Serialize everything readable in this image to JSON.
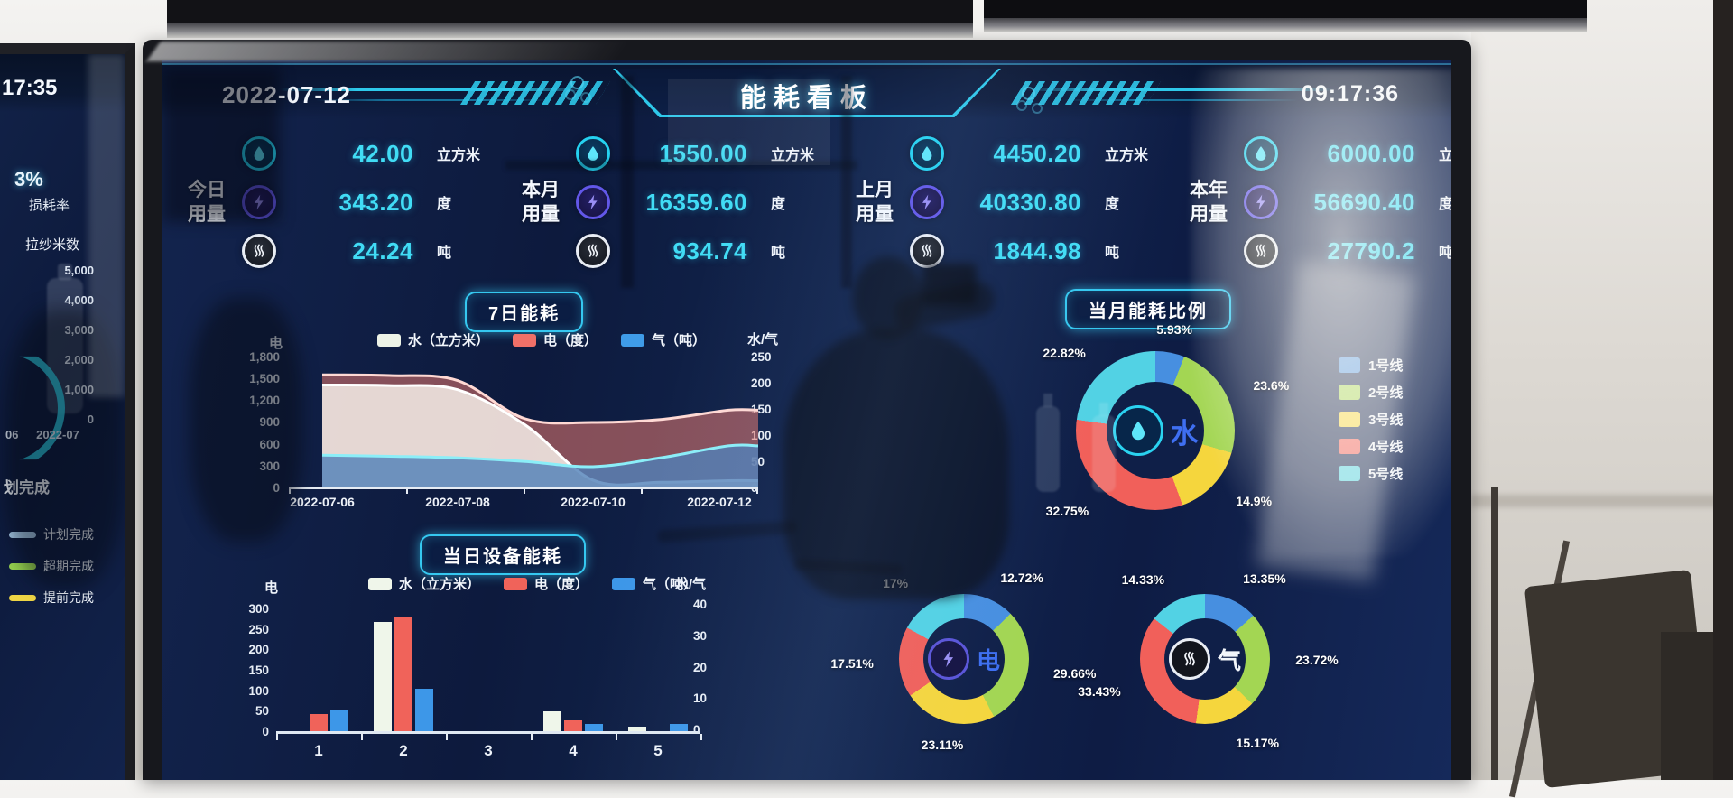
{
  "colors": {
    "accent_cyan": "#2ec8ea",
    "value_cyan": "#41dcf5",
    "line_series": [
      {
        "name": "1号线",
        "color": "#478fe0"
      },
      {
        "name": "2号线",
        "color": "#a3d653"
      },
      {
        "name": "3号线",
        "color": "#f5d63d"
      },
      {
        "name": "4号线",
        "color": "#f1605a"
      },
      {
        "name": "5号线",
        "color": "#52d2e4"
      }
    ]
  },
  "left_screen": {
    "time": "17:35",
    "kpi_value": "3%",
    "kpi_label": "损耗率",
    "chart_title": "拉纱米数",
    "y_ticks": [
      "5,000",
      "4,000",
      "3,000",
      "2,000",
      "1,000",
      "0"
    ],
    "x_ticks": [
      "06",
      "2022-07"
    ],
    "fragment_label": "划完成",
    "legend": [
      {
        "label": "计划完成",
        "color": "#a9cdec"
      },
      {
        "label": "超期完成",
        "color": "#96d24f"
      },
      {
        "label": "提前完成",
        "color": "#eed545"
      }
    ]
  },
  "main_screen": {
    "header": {
      "date": "2022-07-12",
      "title": "能耗看板",
      "time": "09:17:36"
    },
    "units": {
      "water": "立方米",
      "electric": "度",
      "gas": "吨"
    },
    "kpi_groups": [
      {
        "label_line1": "今日",
        "label_line2": "用量",
        "water": "42.00",
        "electric": "343.20",
        "gas": "24.24"
      },
      {
        "label_line1": "本月",
        "label_line2": "用量",
        "water": "1550.00",
        "electric": "16359.60",
        "gas": "934.74"
      },
      {
        "label_line1": "上月",
        "label_line2": "用量",
        "water": "4450.20",
        "electric": "40330.80",
        "gas": "1844.98"
      },
      {
        "label_line1": "本年",
        "label_line2": "用量",
        "water": "6000.00",
        "electric": "56690.40",
        "gas": "27790.2"
      }
    ]
  },
  "chart_data": [
    {
      "id": "seven-day",
      "type": "area",
      "title": "7日能耗",
      "x": [
        "2022-07-06",
        "2022-07-07",
        "2022-07-08",
        "2022-07-09",
        "2022-07-10",
        "2022-07-11",
        "2022-07-12"
      ],
      "x_shown_ticks": [
        "2022-07-06",
        "2022-07-08",
        "2022-07-10",
        "2022-07-12"
      ],
      "left_axis": {
        "label": "电",
        "max": 1800,
        "ticks": [
          "1,800",
          "1,500",
          "1,200",
          "900",
          "600",
          "300",
          "0"
        ]
      },
      "right_axis": {
        "label": "水/气",
        "max": 250,
        "ticks": [
          "250",
          "200",
          "150",
          "100",
          "50",
          "0"
        ]
      },
      "grid": false,
      "series": [
        {
          "name": "水（立方米）",
          "axis": "right",
          "swatch": "#edf3e7",
          "fill": "rgba(246,239,233,0.85)",
          "stroke": "#ffffff",
          "values": [
            197,
            196,
            188,
            120,
            14,
            10,
            13
          ]
        },
        {
          "name": "电（度）",
          "axis": "left",
          "swatch": "#f07068",
          "fill": "rgba(233,122,112,0.55)",
          "stroke": "#ffd9d4",
          "values": [
            1560,
            1550,
            1480,
            950,
            900,
            940,
            1070
          ]
        },
        {
          "name": "气（吨）",
          "axis": "right",
          "swatch": "#3f9ce8",
          "fill": "rgba(79,127,184,0.8)",
          "stroke": "#8beef8",
          "values": [
            62,
            60,
            57,
            50,
            40,
            57,
            80
          ]
        }
      ]
    },
    {
      "id": "device-day",
      "type": "bar",
      "title": "当日设备能耗",
      "categories": [
        "1",
        "2",
        "3",
        "4",
        "5"
      ],
      "left_axis": {
        "label": "电",
        "max": 300,
        "ticks": [
          "300",
          "250",
          "200",
          "150",
          "100",
          "50",
          "0"
        ]
      },
      "right_axis": {
        "label": "水/气",
        "max": 40,
        "ticks": [
          "40",
          "30",
          "20",
          "10",
          "0"
        ]
      },
      "grid": false,
      "series": [
        {
          "name": "水（立方米）",
          "axis": "right",
          "swatch": "#eff6ea",
          "color": "#eff6ea",
          "values": [
            0,
            36,
            0,
            6.5,
            1.5
          ]
        },
        {
          "name": "电（度）",
          "axis": "left",
          "swatch": "#f0635a",
          "color": "#f0635a",
          "values": [
            42,
            280,
            0,
            27,
            0
          ]
        },
        {
          "name": "气（吨）",
          "axis": "right",
          "swatch": "#3d97e8",
          "color": "#3d97e8",
          "values": [
            7,
            14,
            0,
            2.4,
            2.4
          ]
        }
      ]
    },
    {
      "id": "water-donut",
      "type": "pie",
      "title": "当月能耗比例",
      "center_label": "水",
      "legend_position": "right",
      "legend": [
        "1号线",
        "2号线",
        "3号线",
        "4号线",
        "5号线"
      ],
      "slices": [
        {
          "name": "1号线",
          "pct": 5.93,
          "label": "5.93%",
          "color": "#478fe0"
        },
        {
          "name": "2号线",
          "pct": 23.6,
          "label": "23.6%",
          "color": "#a3d653"
        },
        {
          "name": "3号线",
          "pct": 14.9,
          "label": "14.9%",
          "color": "#f5d63d"
        },
        {
          "name": "4号线",
          "pct": 32.75,
          "label": "32.75%",
          "color": "#f1605a"
        },
        {
          "name": "5号线",
          "pct": 22.82,
          "label": "22.82%",
          "color": "#52d2e4"
        }
      ]
    },
    {
      "id": "electric-donut",
      "type": "pie",
      "center_label": "电",
      "slices": [
        {
          "name": "1号线",
          "pct": 12.72,
          "label": "12.72%",
          "color": "#478fe0"
        },
        {
          "name": "2号线",
          "pct": 29.66,
          "label": "29.66%",
          "color": "#a3d653"
        },
        {
          "name": "3号线",
          "pct": 23.11,
          "label": "23.11%",
          "color": "#f5d63d"
        },
        {
          "name": "4号线",
          "pct": 17.51,
          "label": "17.51%",
          "color": "#f1605a"
        },
        {
          "name": "5号线",
          "pct": 17,
          "label": "17%",
          "color": "#52d2e4"
        }
      ]
    },
    {
      "id": "gas-donut",
      "type": "pie",
      "center_label": "气",
      "slices": [
        {
          "name": "1号线",
          "pct": 13.35,
          "label": "13.35%",
          "color": "#478fe0"
        },
        {
          "name": "2号线",
          "pct": 23.72,
          "label": "23.72%",
          "color": "#a3d653"
        },
        {
          "name": "3号线",
          "pct": 15.17,
          "label": "15.17%",
          "color": "#f5d63d"
        },
        {
          "name": "4号线",
          "pct": 33.43,
          "label": "33.43%",
          "color": "#f1605a"
        },
        {
          "name": "5号线",
          "pct": 14.33,
          "label": "14.33%",
          "color": "#52d2e4"
        }
      ]
    }
  ]
}
